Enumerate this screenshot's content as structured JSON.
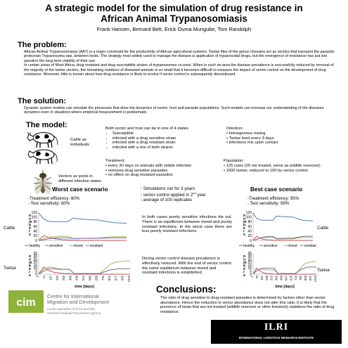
{
  "title_line1": "A strategic model for the simulation of drug resistance in",
  "title_line2": "African Animal Trypanosomiasis",
  "authors": "Frank Hansen, Bernard Bett, Erick Ouma Mungube, Tom Randolph",
  "problem": {
    "heading": "The problem:",
    "p1": "African Animal Trypanosomiasis (AAT) is a major constraint for the productivity of African agricultural systems. Tsetse flies of the genus Glossina act as vectors that transport the parasitic protozoan Trypanosoma spp. between hosts. The strategy most widely used to manage the disease is application of trypanocidal drugs, but the emergence of resistance has put into question the long-term viability of their use.",
    "p2": "In certain areas of West Africa, drug resistant and drug susceptible strains of trypanosomes co-exist. When in such an area the disease prevalence is successfully reduced by removal of the majority of the tsetse vectors, the remaining numbers of diseased animals is so small that it becomes difficult to measure the impact of vector control on the development of drug resistance. Moreover, little is known about how drug resistance is likely to evolve if vector control is subsequently discontinued."
  },
  "solution": {
    "heading": "The solution:",
    "text": "Dynamic system models can simulate the processes that drive the dynamics of vector, host and parasite populations. Such models can increase our understanding of the diseases dynamics even in situations where empirical measurement is problematic."
  },
  "model": {
    "heading": "The model:",
    "cattle_label": "Cattle as individuals",
    "vectors_label": "Vectors as pools in different infection states",
    "states_intro": "Both vector and host can be in one of 4 states",
    "states": [
      "Susceptible",
      "infected with a drug sensitive strain",
      "infected with a drug resistant strain",
      "infected with a mix of both strains"
    ],
    "infection_title": "Infection:",
    "infection_items": [
      "homogenous mixing",
      "Tsetse feed every 3 days",
      "infections mix upon contact"
    ],
    "treatment_title": "Treatment:",
    "treatment_items": [
      "every 30 days on animals with visible infection",
      "removes drug sensitive parasites",
      "no effect on drug resistant parasites"
    ],
    "population_title": "Population:",
    "population_items": [
      "125 cows (25 not treated, serve as wildlife reservoir)",
      "1000 tsetse, reduced to 100 by vector control"
    ]
  },
  "scenarios": {
    "worst_title": "Worst case scenario",
    "worst_efficacy": "-Treatment efficiency: 60%",
    "worst_sensitivity": "- Test sensitivity: 60%",
    "best_title": "Best case scenario",
    "best_efficacy": "-Treatment efficiency: 95%",
    "best_sensitivity": "- Test sensitivity: 99%",
    "sim_line1": "- Simulations run for 3 years",
    "sim_line2": "- vector control applied in 2",
    "sim_line2_sup": "nd",
    "sim_line2_end": " year",
    "sim_line3": "- average of 100 replicates",
    "cattle_note": "In both cases purely sensitive infections die out. There is an equilibrium between mixed and purely resistant infections. In the worst case there are less purely resistant infections.",
    "tsetse_note": "During vector control disease prevalence is effectively reduced. With the end of vector control the same equilibrium between mixed and resistant infections is established.",
    "row_cattle": "Cattle",
    "row_tsetse": "Tsetse",
    "ylabel": "numbers",
    "xlabel": "time [days]"
  },
  "chart_data": [
    {
      "type": "line",
      "name": "worst-cattle",
      "ylim": [
        0,
        120
      ],
      "yticks": [
        0,
        20,
        40,
        60,
        80,
        100,
        120
      ],
      "x": [
        0,
        60,
        120,
        180,
        240,
        300,
        360,
        420,
        480,
        540,
        600,
        660,
        720,
        780,
        840,
        900,
        960,
        1020,
        1080
      ],
      "series": [
        {
          "name": "healthy",
          "color": "#4a7ebb",
          "values": [
            118,
            92,
            82,
            80,
            80,
            80,
            80,
            95,
            93,
            91,
            89,
            88,
            88,
            84,
            80,
            77,
            75,
            74,
            73
          ]
        },
        {
          "name": "sensitive",
          "color": "#c0504d",
          "values": [
            0,
            20,
            14,
            8,
            5,
            3,
            2,
            1,
            1,
            0,
            0,
            0,
            0,
            0,
            0,
            0,
            0,
            0,
            0
          ]
        },
        {
          "name": "mixed",
          "color": "#9bbb59",
          "values": [
            0,
            6,
            13,
            16,
            18,
            18,
            18,
            8,
            9,
            9,
            10,
            10,
            10,
            12,
            14,
            15,
            16,
            16,
            16
          ]
        },
        {
          "name": "resistant",
          "color": "#8064a2",
          "values": [
            0,
            2,
            7,
            10,
            11,
            11,
            11,
            8,
            8,
            9,
            9,
            9,
            9,
            10,
            10,
            11,
            11,
            11,
            11
          ]
        }
      ],
      "legend": [
        "healthy",
        "sensitive",
        "mixed",
        "resistant"
      ]
    },
    {
      "type": "line",
      "name": "best-cattle",
      "ylim": [
        0,
        120
      ],
      "yticks": [
        0,
        20,
        40,
        60,
        80,
        100,
        120
      ],
      "x": [
        0,
        60,
        120,
        180,
        240,
        300,
        360,
        420,
        480,
        540,
        600,
        660,
        720,
        780,
        840,
        900,
        960,
        1020,
        1080
      ],
      "series": [
        {
          "name": "healthy",
          "color": "#4a7ebb",
          "values": [
            118,
            95,
            88,
            86,
            86,
            86,
            86,
            104,
            103,
            102,
            101,
            100,
            100,
            95,
            90,
            86,
            85,
            84,
            84
          ]
        },
        {
          "name": "sensitive",
          "color": "#c0504d",
          "values": [
            0,
            18,
            10,
            5,
            3,
            2,
            1,
            0,
            0,
            0,
            0,
            0,
            0,
            0,
            0,
            0,
            0,
            0,
            0
          ]
        },
        {
          "name": "mixed",
          "color": "#9bbb59",
          "values": [
            0,
            5,
            10,
            12,
            13,
            13,
            13,
            5,
            5,
            6,
            6,
            7,
            7,
            9,
            11,
            12,
            13,
            13,
            13
          ]
        },
        {
          "name": "resistant",
          "color": "#8064a2",
          "values": [
            0,
            4,
            10,
            14,
            16,
            17,
            17,
            8,
            9,
            9,
            10,
            10,
            10,
            13,
            15,
            17,
            18,
            18,
            18
          ]
        }
      ],
      "legend": [
        "healthy",
        "sensitive",
        "mixed",
        "resistant"
      ]
    },
    {
      "type": "line",
      "name": "worst-tsetse",
      "ylim": [
        0,
        35
      ],
      "yticks": [
        0,
        5,
        10,
        15,
        20,
        25,
        30,
        35
      ],
      "xticks": [
        "1",
        "74",
        "147",
        "220",
        "293",
        "366",
        "439",
        "512",
        "585",
        "658",
        "731",
        "804",
        "877",
        "950",
        "1023"
      ],
      "x": [
        0,
        60,
        120,
        180,
        240,
        300,
        360,
        420,
        480,
        540,
        600,
        660,
        720,
        780,
        840,
        900,
        960,
        1020,
        1080
      ],
      "series": [
        {
          "name": "sensitive",
          "color": "#c0504d",
          "values": [
            0,
            12,
            6,
            3,
            2,
            1,
            1,
            0,
            0,
            0,
            0,
            0,
            0,
            0,
            0,
            0,
            0,
            0,
            0
          ]
        },
        {
          "name": "mixed",
          "color": "#9bbb59",
          "values": [
            0,
            8,
            12,
            11,
            9,
            8,
            8,
            1,
            1,
            1,
            1,
            1,
            1,
            8,
            16,
            20,
            21,
            22,
            22
          ]
        },
        {
          "name": "resistant",
          "color": "#8064a2",
          "values": [
            0,
            5,
            9,
            9,
            8,
            8,
            8,
            1,
            1,
            1,
            1,
            1,
            1,
            4,
            7,
            8,
            9,
            9,
            9
          ]
        }
      ]
    },
    {
      "type": "line",
      "name": "best-tsetse",
      "ylim": [
        0,
        35
      ],
      "yticks": [
        0,
        5,
        10,
        15,
        20,
        25,
        30,
        35
      ],
      "xticks": [
        "1",
        "79",
        "157",
        "235",
        "313",
        "391",
        "469",
        "547",
        "625",
        "703",
        "781",
        "859",
        "937",
        "1015"
      ],
      "x": [
        0,
        60,
        120,
        180,
        240,
        300,
        360,
        420,
        480,
        540,
        600,
        660,
        720,
        780,
        840,
        900,
        960,
        1020,
        1080
      ],
      "series": [
        {
          "name": "sensitive",
          "color": "#c0504d",
          "values": [
            0,
            10,
            5,
            2,
            1,
            1,
            0,
            0,
            0,
            0,
            0,
            0,
            0,
            0,
            0,
            0,
            0,
            0,
            0
          ]
        },
        {
          "name": "mixed",
          "color": "#9bbb59",
          "values": [
            0,
            6,
            8,
            8,
            7,
            7,
            7,
            1,
            1,
            1,
            1,
            1,
            1,
            6,
            14,
            18,
            20,
            21,
            21
          ]
        },
        {
          "name": "resistant",
          "color": "#8064a2",
          "values": [
            0,
            6,
            9,
            10,
            10,
            10,
            10,
            1,
            1,
            1,
            1,
            1,
            1,
            5,
            9,
            11,
            12,
            12,
            12
          ]
        }
      ]
    }
  ],
  "conclusions": {
    "heading": "Conclusions:",
    "text": "The ratio of drug sensitive to drug resistant parasites is determined by factors other than vector abundance. Hence the reduction in vector abundance does not alter this ratio. It is likely that the presence of hosts that are not treated (wildlife reservoir or other livestock) stabilizes the ratio of drug resistance."
  },
  "logos": {
    "cim_mark": "cim",
    "cim_line1": "Centre for International",
    "cim_line2": "Migration and Development",
    "cim_line3": "a joint operation of GTZ and the",
    "cim_line4": "German Federal Placement Agency",
    "ilri_mark": "ILRI",
    "ilri_sub": "INTERNATIONAL LIVESTOCK RESEARCH INSTITUTE"
  }
}
